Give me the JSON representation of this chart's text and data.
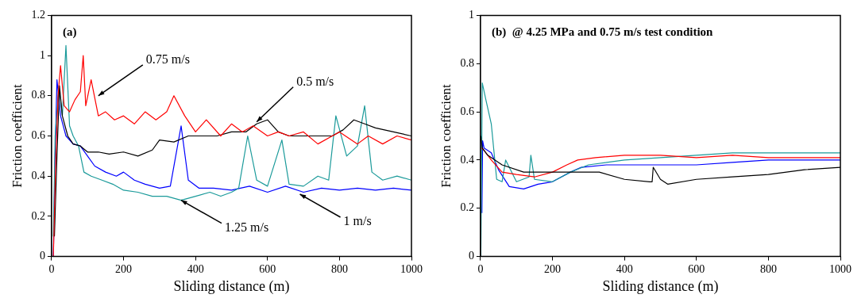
{
  "chart_data": [
    {
      "type": "line",
      "title": "(a)",
      "xlabel": "Sliding distance (m)",
      "ylabel": "Friction coefficient",
      "xlim": [
        0,
        1000
      ],
      "xticks": [
        0,
        200,
        400,
        600,
        800,
        1000
      ],
      "ylim": [
        0,
        1.2
      ],
      "yticks": [
        0,
        0.2,
        0.4,
        0.6,
        0.8,
        1.0,
        1.2
      ],
      "grid": false,
      "legend": false,
      "marker": "none",
      "line_style": "solid",
      "series": [
        {
          "color": "#ff0000",
          "x": [
            5,
            12,
            18,
            25,
            35,
            50,
            65,
            80,
            88,
            95,
            110,
            130,
            150,
            175,
            200,
            230,
            260,
            290,
            320,
            340,
            370,
            400,
            430,
            470,
            500,
            530,
            560,
            600,
            630,
            660,
            700,
            740,
            780,
            800,
            850,
            880,
            920,
            960,
            1000
          ],
          "values": [
            0.0,
            0.5,
            0.8,
            0.95,
            0.75,
            0.72,
            0.78,
            0.82,
            1.0,
            0.75,
            0.88,
            0.7,
            0.72,
            0.68,
            0.7,
            0.66,
            0.72,
            0.68,
            0.72,
            0.8,
            0.7,
            0.62,
            0.68,
            0.6,
            0.66,
            0.62,
            0.65,
            0.6,
            0.62,
            0.6,
            0.62,
            0.56,
            0.6,
            0.62,
            0.56,
            0.6,
            0.56,
            0.6,
            0.58
          ]
        },
        {
          "color": "#000000",
          "x": [
            8,
            15,
            22,
            30,
            45,
            60,
            80,
            100,
            130,
            160,
            200,
            240,
            280,
            300,
            340,
            380,
            420,
            460,
            500,
            540,
            570,
            600,
            630,
            660,
            700,
            740,
            780,
            810,
            840,
            870,
            900,
            950,
            1000
          ],
          "values": [
            0.1,
            0.5,
            0.85,
            0.7,
            0.6,
            0.56,
            0.55,
            0.52,
            0.52,
            0.51,
            0.52,
            0.5,
            0.53,
            0.58,
            0.57,
            0.6,
            0.6,
            0.6,
            0.62,
            0.62,
            0.66,
            0.68,
            0.62,
            0.6,
            0.6,
            0.6,
            0.6,
            0.63,
            0.68,
            0.66,
            0.64,
            0.62,
            0.6
          ]
        },
        {
          "color": "#1a9a9a",
          "x": [
            5,
            10,
            20,
            30,
            40,
            50,
            60,
            75,
            90,
            110,
            140,
            170,
            200,
            240,
            280,
            320,
            360,
            400,
            440,
            470,
            500,
            520,
            545,
            570,
            600,
            640,
            660,
            700,
            740,
            770,
            790,
            820,
            850,
            870,
            890,
            920,
            960,
            1000
          ],
          "values": [
            0.1,
            0.6,
            0.85,
            0.7,
            1.05,
            0.65,
            0.6,
            0.55,
            0.42,
            0.4,
            0.38,
            0.36,
            0.33,
            0.32,
            0.3,
            0.3,
            0.28,
            0.3,
            0.32,
            0.3,
            0.32,
            0.34,
            0.6,
            0.38,
            0.35,
            0.58,
            0.36,
            0.35,
            0.4,
            0.38,
            0.7,
            0.5,
            0.55,
            0.75,
            0.42,
            0.38,
            0.4,
            0.38
          ]
        },
        {
          "color": "#0000ff",
          "x": [
            5,
            10,
            15,
            25,
            40,
            60,
            80,
            100,
            120,
            150,
            180,
            200,
            230,
            260,
            300,
            330,
            360,
            380,
            410,
            450,
            500,
            550,
            600,
            650,
            700,
            750,
            800,
            850,
            900,
            950,
            1000
          ],
          "values": [
            0.0,
            0.5,
            0.88,
            0.7,
            0.6,
            0.56,
            0.55,
            0.5,
            0.45,
            0.42,
            0.4,
            0.42,
            0.38,
            0.36,
            0.34,
            0.35,
            0.65,
            0.38,
            0.34,
            0.34,
            0.33,
            0.35,
            0.32,
            0.35,
            0.32,
            0.34,
            0.33,
            0.34,
            0.33,
            0.34,
            0.33
          ]
        }
      ],
      "annotations": [
        {
          "text": "0.75 m/s",
          "x": 130,
          "y": 0.8
        },
        {
          "text": "0.5 m/s",
          "x": 570,
          "y": 0.67
        },
        {
          "text": "1.25 m/s",
          "x": 360,
          "y": 0.28
        },
        {
          "text": "1 m/s",
          "x": 690,
          "y": 0.31
        }
      ]
    },
    {
      "type": "line",
      "title": "(b)  @ 4.25 MPa and 0.75 m/s test condition",
      "xlabel": "Sliding distance (m)",
      "ylabel": "Friction coefficient",
      "xlim": [
        0,
        1000
      ],
      "xticks": [
        0,
        200,
        400,
        600,
        800,
        1000
      ],
      "ylim": [
        0,
        1.0
      ],
      "yticks": [
        0,
        0.2,
        0.4,
        0.6,
        0.8,
        1.0
      ],
      "grid": false,
      "legend": false,
      "marker": "none",
      "line_style": "solid",
      "series": [
        {
          "color": "#000000",
          "x": [
            1,
            5,
            20,
            60,
            120,
            200,
            270,
            300,
            330,
            400,
            470,
            477,
            480,
            500,
            520,
            600,
            700,
            800,
            900,
            1000
          ],
          "values": [
            0.5,
            0.45,
            0.42,
            0.38,
            0.35,
            0.35,
            0.35,
            0.35,
            0.35,
            0.32,
            0.31,
            0.31,
            0.37,
            0.32,
            0.3,
            0.32,
            0.33,
            0.34,
            0.36,
            0.37
          ]
        },
        {
          "color": "#ff0000",
          "x": [
            3,
            10,
            30,
            60,
            100,
            150,
            200,
            240,
            270,
            320,
            400,
            500,
            600,
            700,
            800,
            900,
            1000
          ],
          "values": [
            0.45,
            0.44,
            0.4,
            0.35,
            0.34,
            0.33,
            0.35,
            0.38,
            0.4,
            0.41,
            0.42,
            0.42,
            0.41,
            0.42,
            0.41,
            0.41,
            0.41
          ]
        },
        {
          "color": "#1a9a9a",
          "x": [
            1,
            5,
            15,
            30,
            45,
            60,
            70,
            100,
            135,
            140,
            150,
            200,
            250,
            300,
            400,
            500,
            600,
            700,
            800,
            900,
            1000
          ],
          "values": [
            0.0,
            0.72,
            0.65,
            0.55,
            0.32,
            0.31,
            0.4,
            0.31,
            0.33,
            0.42,
            0.32,
            0.31,
            0.35,
            0.38,
            0.4,
            0.41,
            0.42,
            0.43,
            0.43,
            0.43,
            0.43
          ]
        },
        {
          "color": "#0000ff",
          "x": [
            4,
            6,
            10,
            30,
            50,
            80,
            120,
            160,
            200,
            250,
            280,
            350,
            400,
            500,
            600,
            700,
            800,
            900,
            1000
          ],
          "values": [
            0.18,
            0.48,
            0.45,
            0.43,
            0.36,
            0.29,
            0.28,
            0.3,
            0.31,
            0.35,
            0.37,
            0.38,
            0.38,
            0.38,
            0.38,
            0.39,
            0.4,
            0.4,
            0.4
          ]
        }
      ]
    }
  ]
}
